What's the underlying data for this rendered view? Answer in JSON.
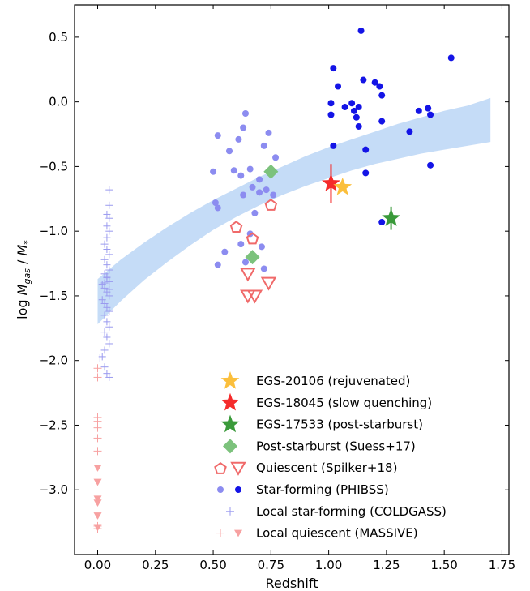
{
  "chart_data": {
    "type": "scatter",
    "title": "",
    "xlabel": "Redshift",
    "ylabel_prefix": "log ",
    "ylabel_num": "M",
    "ylabel_num_sub": "gas",
    "ylabel_sep": " / ",
    "ylabel_den": "M",
    "ylabel_den_sub": "*",
    "xlim": [
      -0.1,
      1.78
    ],
    "ylim": [
      -3.5,
      0.75
    ],
    "x_ticks": [
      0.0,
      0.25,
      0.5,
      0.75,
      1.0,
      1.25,
      1.5,
      1.75
    ],
    "x_tick_labels": [
      "0.00",
      "0.25",
      "0.50",
      "0.75",
      "1.00",
      "1.25",
      "1.50",
      "1.75"
    ],
    "y_ticks": [
      0.5,
      0.0,
      -0.5,
      -1.0,
      -1.5,
      -2.0,
      -2.5,
      -3.0
    ],
    "y_tick_labels": [
      "0.5",
      "0.0",
      "−0.5",
      "−1.0",
      "−1.5",
      "−2.0",
      "−2.5",
      "−3.0"
    ],
    "grid": false,
    "legend_position": "lower-right",
    "colors": {
      "rejuvenated": "#fbbf3c",
      "slow_quenching": "#f52b2b",
      "post_starburst": "#3a9a3a",
      "suess": "#7cc27c",
      "quiescent": "#f06a6a",
      "phibss_high": "#1414e6",
      "phibss_low": "#8c8cf0",
      "coldgass": "#9a9aef",
      "massive": "#f7a1a1",
      "band": "#c5dcf7"
    },
    "band": {
      "x": [
        0.0,
        0.1,
        0.2,
        0.3,
        0.4,
        0.5,
        0.6,
        0.7,
        0.8,
        0.9,
        1.0,
        1.1,
        1.2,
        1.3,
        1.4,
        1.5,
        1.6,
        1.7
      ],
      "upper": [
        -1.37,
        -1.22,
        -1.09,
        -0.97,
        -0.86,
        -0.76,
        -0.67,
        -0.58,
        -0.5,
        -0.42,
        -0.35,
        -0.29,
        -0.23,
        -0.17,
        -0.12,
        -0.07,
        -0.03,
        0.03
      ],
      "lower": [
        -1.72,
        -1.54,
        -1.38,
        -1.24,
        -1.11,
        -0.99,
        -0.89,
        -0.8,
        -0.72,
        -0.65,
        -0.59,
        -0.53,
        -0.48,
        -0.44,
        -0.4,
        -0.37,
        -0.34,
        -0.31
      ]
    },
    "series": [
      {
        "name": "EGS-20106 (rejuvenated)",
        "marker": "star",
        "color": "#fbbf3c",
        "points": [
          [
            1.06,
            -0.66
          ]
        ]
      },
      {
        "name": "EGS-18045 (slow quenching)",
        "marker": "star",
        "color": "#f52b2b",
        "errorbar": true,
        "points": [
          [
            1.01,
            -0.63,
            -0.78,
            -0.48
          ]
        ]
      },
      {
        "name": "EGS-17533 (post-starburst)",
        "marker": "star",
        "color": "#3a9a3a",
        "errorbar": true,
        "points": [
          [
            1.27,
            -0.9,
            -0.99,
            -0.81
          ]
        ]
      },
      {
        "name": "Post-starburst (Suess+17)",
        "marker": "diamond",
        "color": "#7cc27c",
        "points": [
          [
            0.75,
            -0.54
          ],
          [
            0.67,
            -1.2
          ]
        ]
      },
      {
        "name": "Quiescent (Spilker+18)",
        "marker": "pentagon-open",
        "color": "#f06a6a",
        "points": [
          [
            0.6,
            -0.97
          ],
          [
            0.67,
            -1.06
          ],
          [
            0.75,
            -0.8
          ]
        ],
        "limits": [
          [
            0.65,
            -1.33
          ],
          [
            0.74,
            -1.4
          ],
          [
            0.65,
            -1.5
          ],
          [
            0.68,
            -1.5
          ]
        ]
      },
      {
        "name": "Star-forming (PHIBSS)",
        "marker": "circle",
        "color": "#1414e6",
        "color_low": "#8c8cf0",
        "points_low_z": [
          [
            0.52,
            -0.26
          ],
          [
            0.57,
            -0.38
          ],
          [
            0.61,
            -0.29
          ],
          [
            0.63,
            -0.2
          ],
          [
            0.64,
            -0.09
          ],
          [
            0.72,
            -0.34
          ],
          [
            0.74,
            -0.24
          ],
          [
            0.77,
            -0.43
          ],
          [
            0.5,
            -0.54
          ],
          [
            0.59,
            -0.53
          ],
          [
            0.62,
            -0.57
          ],
          [
            0.66,
            -0.52
          ],
          [
            0.7,
            -0.6
          ],
          [
            0.73,
            -0.68
          ],
          [
            0.76,
            -0.72
          ],
          [
            0.67,
            -0.66
          ],
          [
            0.63,
            -0.72
          ],
          [
            0.7,
            -0.7
          ],
          [
            0.52,
            -0.82
          ],
          [
            0.51,
            -0.78
          ],
          [
            0.68,
            -0.86
          ],
          [
            0.62,
            -1.1
          ],
          [
            0.55,
            -1.16
          ],
          [
            0.52,
            -1.26
          ],
          [
            0.66,
            -1.02
          ],
          [
            0.71,
            -1.12
          ],
          [
            0.72,
            -1.29
          ],
          [
            0.64,
            -1.24
          ]
        ],
        "points_high_z": [
          [
            1.14,
            0.55
          ],
          [
            1.53,
            0.34
          ],
          [
            1.02,
            0.26
          ],
          [
            1.04,
            0.12
          ],
          [
            1.15,
            0.17
          ],
          [
            1.2,
            0.15
          ],
          [
            1.22,
            0.12
          ],
          [
            1.23,
            0.05
          ],
          [
            1.01,
            -0.01
          ],
          [
            1.07,
            -0.04
          ],
          [
            1.1,
            -0.01
          ],
          [
            1.11,
            -0.07
          ],
          [
            1.12,
            -0.12
          ],
          [
            1.01,
            -0.1
          ],
          [
            1.13,
            -0.04
          ],
          [
            1.23,
            -0.15
          ],
          [
            1.39,
            -0.07
          ],
          [
            1.43,
            -0.05
          ],
          [
            1.44,
            -0.1
          ],
          [
            1.13,
            -0.19
          ],
          [
            1.35,
            -0.23
          ],
          [
            1.02,
            -0.34
          ],
          [
            1.16,
            -0.37
          ],
          [
            1.16,
            -0.55
          ],
          [
            1.44,
            -0.49
          ],
          [
            1.23,
            -0.93
          ]
        ]
      },
      {
        "name": "Local star-forming (COLDGASS)",
        "marker": "plus",
        "color": "#9a9aef",
        "points": [
          [
            0.05,
            -0.68
          ],
          [
            0.05,
            -0.8
          ],
          [
            0.04,
            -0.87
          ],
          [
            0.05,
            -0.9
          ],
          [
            0.04,
            -0.96
          ],
          [
            0.05,
            -1.0
          ],
          [
            0.04,
            -1.05
          ],
          [
            0.03,
            -1.1
          ],
          [
            0.04,
            -1.14
          ],
          [
            0.05,
            -1.18
          ],
          [
            0.03,
            -1.22
          ],
          [
            0.04,
            -1.26
          ],
          [
            0.05,
            -1.3
          ],
          [
            0.03,
            -1.33
          ],
          [
            0.04,
            -1.36
          ],
          [
            0.05,
            -1.39
          ],
          [
            0.02,
            -1.41
          ],
          [
            0.03,
            -1.44
          ],
          [
            0.04,
            -1.47
          ],
          [
            0.05,
            -1.5
          ],
          [
            0.02,
            -1.53
          ],
          [
            0.03,
            -1.56
          ],
          [
            0.04,
            -1.59
          ],
          [
            0.05,
            -1.62
          ],
          [
            0.03,
            -1.65
          ],
          [
            0.04,
            -1.7
          ],
          [
            0.05,
            -1.74
          ],
          [
            0.03,
            -1.78
          ],
          [
            0.04,
            -1.82
          ],
          [
            0.05,
            -1.87
          ],
          [
            0.03,
            -1.92
          ],
          [
            0.02,
            -1.97
          ],
          [
            0.03,
            -2.05
          ],
          [
            0.04,
            -2.1
          ],
          [
            0.05,
            -2.13
          ],
          [
            0.01,
            -1.98
          ],
          [
            0.04,
            -1.35
          ],
          [
            0.03,
            -1.4
          ],
          [
            0.05,
            -1.45
          ]
        ]
      },
      {
        "name": "Local quiescent (MASSIVE)",
        "marker": "plus-triangle",
        "color": "#f7a1a1",
        "points": [
          [
            0.0,
            -2.06
          ],
          [
            0.0,
            -2.13
          ],
          [
            0.0,
            -2.44
          ],
          [
            0.0,
            -2.47
          ],
          [
            0.0,
            -2.52
          ],
          [
            0.0,
            -2.6
          ],
          [
            0.0,
            -2.7
          ],
          [
            0.0,
            -3.3
          ],
          [
            0.0,
            -3.28
          ]
        ],
        "limits": [
          [
            0.0,
            -2.83
          ],
          [
            0.0,
            -2.94
          ],
          [
            0.0,
            -3.07
          ],
          [
            0.0,
            -3.1
          ],
          [
            0.0,
            -3.2
          ],
          [
            0.0,
            -3.29
          ]
        ]
      }
    ]
  }
}
